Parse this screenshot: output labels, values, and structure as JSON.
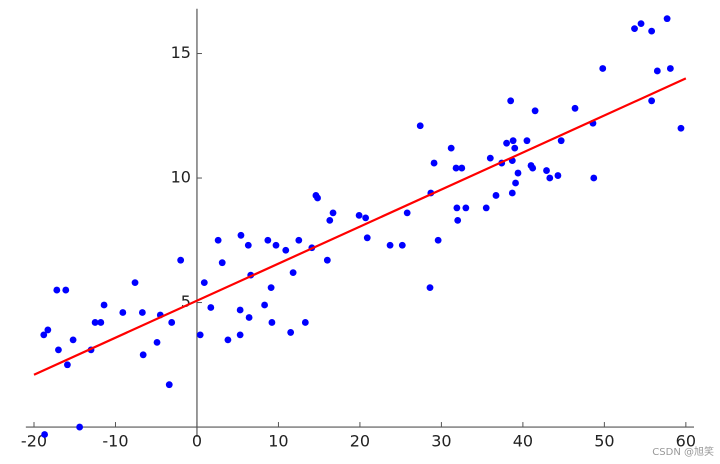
{
  "chart_data": {
    "type": "scatter",
    "xlim": [
      -21,
      61
    ],
    "ylim": [
      -0.4,
      16.8
    ],
    "xticks": [
      -20,
      -10,
      0,
      10,
      20,
      30,
      40,
      50,
      60
    ],
    "yticks": [
      5,
      10,
      15
    ],
    "watermark": "CSDN @旭笑",
    "series": [
      {
        "type": "scatter",
        "color": "#0000ff",
        "x": [
          -18.7,
          -18.8,
          -18.3,
          -17.2,
          -16.1,
          -17.0,
          -15.9,
          -15.2,
          -14.4,
          -13.0,
          -12.5,
          -11.8,
          -11.4,
          -9.1,
          -7.6,
          -6.7,
          -6.6,
          -4.9,
          -4.5,
          -3.4,
          -3.1,
          -2.0,
          0.4,
          0.9,
          1.7,
          2.6,
          3.1,
          3.8,
          5.3,
          5.4,
          5.3,
          6.3,
          6.6,
          6.4,
          8.3,
          8.7,
          9.1,
          9.2,
          9.7,
          10.9,
          11.5,
          11.8,
          12.5,
          13.3,
          14.1,
          14.6,
          14.8,
          16.0,
          16.3,
          16.7,
          19.9,
          20.7,
          20.9,
          23.7,
          25.2,
          25.8,
          27.4,
          28.6,
          28.7,
          29.1,
          29.6,
          31.2,
          31.8,
          31.9,
          32.0,
          32.5,
          33.0,
          35.5,
          36.0,
          36.7,
          37.4,
          38.0,
          38.5,
          38.7,
          38.7,
          38.8,
          39.1,
          39.4,
          39.0,
          40.5,
          41.0,
          41.2,
          41.5,
          42.9,
          43.3,
          44.3,
          44.7,
          46.4,
          48.6,
          48.7,
          49.8,
          53.7,
          54.5,
          55.8,
          55.8,
          56.5,
          57.7,
          58.1,
          59.4
        ],
        "values": [
          -0.3,
          3.7,
          3.9,
          5.5,
          5.5,
          3.1,
          2.5,
          3.5,
          0.0,
          3.1,
          4.2,
          4.2,
          4.9,
          4.6,
          5.8,
          4.6,
          2.9,
          3.4,
          4.5,
          1.7,
          4.2,
          6.7,
          3.7,
          5.8,
          4.8,
          7.5,
          6.6,
          3.5,
          4.7,
          7.7,
          3.7,
          7.3,
          6.1,
          4.4,
          4.9,
          7.5,
          5.6,
          4.2,
          7.3,
          7.1,
          3.8,
          6.2,
          7.5,
          4.2,
          7.2,
          9.3,
          9.2,
          6.7,
          8.3,
          8.6,
          8.5,
          8.4,
          7.6,
          7.3,
          7.3,
          8.6,
          12.1,
          5.6,
          9.4,
          10.6,
          7.5,
          11.2,
          10.4,
          8.8,
          8.3,
          10.4,
          8.8,
          8.8,
          10.8,
          9.3,
          10.6,
          11.4,
          13.1,
          10.7,
          9.4,
          11.5,
          9.8,
          10.2,
          11.2,
          11.5,
          10.5,
          10.4,
          12.7,
          10.3,
          10.0,
          10.1,
          11.5,
          12.8,
          12.2,
          10.0,
          14.4,
          16.0,
          16.2,
          15.9,
          13.1,
          14.3,
          16.4,
          14.4,
          12.0
        ]
      },
      {
        "type": "line",
        "color": "#ff0000",
        "x": [
          -20,
          60
        ],
        "values": [
          2.1,
          14.0
        ]
      }
    ]
  }
}
